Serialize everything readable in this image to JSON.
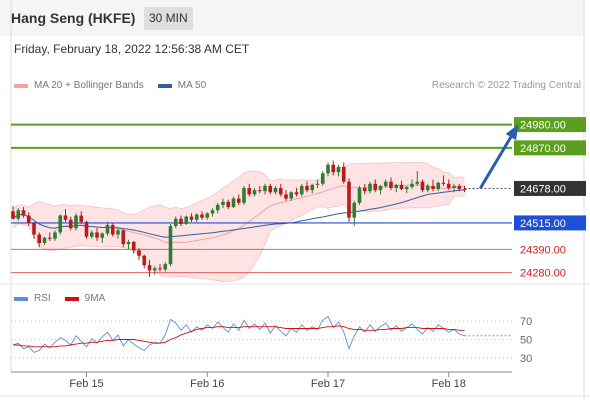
{
  "header": {
    "title": "Hang Seng (HKFE)",
    "timeframe": "30 MIN"
  },
  "datetime": "Friday, February 18, 2022 12:56:38 AM CET",
  "legend": {
    "ma20_label": "MA 20 + Bollinger Bands",
    "ma50_label": "MA 50",
    "copyright": "Research © 2022 Trading Central"
  },
  "rsi_legend": {
    "rsi_label": "RSI",
    "ma_label": "9MA"
  },
  "colors": {
    "up": "#2e7d32",
    "down": "#b71c1c",
    "green_level": "#5aa01e",
    "blue_level": "#1f4fd6",
    "red_level": "#e06060",
    "current": "#333333",
    "bb_fill": "#fde0e0",
    "ma20": "#f4a3a3",
    "ma50": "#3a5d9e",
    "arrow": "#2a5db0",
    "rsi": "#5b8fd8",
    "rsi_ma": "#d01010"
  },
  "chart_data": [
    {
      "type": "candlestick",
      "title": "",
      "xlabel": "",
      "ylabel": "",
      "ylim": [
        24245,
        25120
      ],
      "x_ticks": [
        "Feb 15",
        "Feb 16",
        "Feb 17",
        "Feb 18"
      ],
      "x_tick_index": [
        14,
        37,
        60,
        83
      ],
      "levels": [
        {
          "value": 24980.0,
          "label": "24980.00",
          "kind": "resistance"
        },
        {
          "value": 24870.0,
          "label": "24870.00",
          "kind": "resistance"
        },
        {
          "value": 24678.0,
          "label": "24678.00",
          "kind": "current"
        },
        {
          "value": 24515.0,
          "label": "24515.00",
          "kind": "pivot"
        },
        {
          "value": 24390.0,
          "label": "24390.00",
          "kind": "support"
        },
        {
          "value": 24280.0,
          "label": "24280.00",
          "kind": "support"
        }
      ],
      "target_arrow": {
        "from_index": 89,
        "from_value": 24678,
        "to_index": 96,
        "to_value": 24970
      },
      "candles": [
        [
          24570,
          24595,
          24530,
          24535
        ],
        [
          24535,
          24585,
          24525,
          24575
        ],
        [
          24575,
          24590,
          24540,
          24550
        ],
        [
          24550,
          24565,
          24500,
          24515
        ],
        [
          24515,
          24520,
          24440,
          24460
        ],
        [
          24460,
          24470,
          24400,
          24420
        ],
        [
          24420,
          24450,
          24410,
          24445
        ],
        [
          24445,
          24470,
          24430,
          24440
        ],
        [
          24440,
          24480,
          24430,
          24470
        ],
        [
          24470,
          24555,
          24460,
          24550
        ],
        [
          24550,
          24580,
          24520,
          24530
        ],
        [
          24530,
          24545,
          24480,
          24490
        ],
        [
          24490,
          24560,
          24480,
          24550
        ],
        [
          24550,
          24570,
          24510,
          24520
        ],
        [
          24520,
          24525,
          24440,
          24450
        ],
        [
          24450,
          24480,
          24440,
          24470
        ],
        [
          24470,
          24490,
          24430,
          24445
        ],
        [
          24445,
          24470,
          24420,
          24465
        ],
        [
          24465,
          24520,
          24455,
          24505
        ],
        [
          24505,
          24515,
          24450,
          24460
        ],
        [
          24460,
          24490,
          24440,
          24480
        ],
        [
          24480,
          24485,
          24400,
          24415
        ],
        [
          24415,
          24435,
          24390,
          24425
        ],
        [
          24425,
          24430,
          24370,
          24385
        ],
        [
          24385,
          24395,
          24340,
          24360
        ],
        [
          24360,
          24365,
          24300,
          24315
        ],
        [
          24315,
          24340,
          24260,
          24290
        ],
        [
          24290,
          24310,
          24270,
          24300
        ],
        [
          24300,
          24320,
          24285,
          24295
        ],
        [
          24295,
          24330,
          24285,
          24320
        ],
        [
          24320,
          24510,
          24310,
          24500
        ],
        [
          24500,
          24545,
          24490,
          24535
        ],
        [
          24535,
          24550,
          24500,
          24510
        ],
        [
          24510,
          24550,
          24505,
          24545
        ],
        [
          24545,
          24560,
          24520,
          24530
        ],
        [
          24530,
          24560,
          24520,
          24555
        ],
        [
          24555,
          24570,
          24530,
          24540
        ],
        [
          24540,
          24565,
          24530,
          24560
        ],
        [
          24560,
          24585,
          24545,
          24575
        ],
        [
          24575,
          24610,
          24560,
          24600
        ],
        [
          24600,
          24630,
          24585,
          24615
        ],
        [
          24615,
          24625,
          24580,
          24590
        ],
        [
          24590,
          24640,
          24585,
          24630
        ],
        [
          24630,
          24650,
          24600,
          24610
        ],
        [
          24610,
          24690,
          24600,
          24680
        ],
        [
          24680,
          24700,
          24640,
          24650
        ],
        [
          24650,
          24680,
          24640,
          24670
        ],
        [
          24670,
          24690,
          24655,
          24665
        ],
        [
          24665,
          24700,
          24650,
          24690
        ],
        [
          24690,
          24700,
          24650,
          24660
        ],
        [
          24660,
          24690,
          24650,
          24680
        ],
        [
          24680,
          24700,
          24640,
          24650
        ],
        [
          24650,
          24670,
          24620,
          24630
        ],
        [
          24630,
          24665,
          24620,
          24660
        ],
        [
          24660,
          24680,
          24640,
          24650
        ],
        [
          24650,
          24700,
          24640,
          24690
        ],
        [
          24690,
          24710,
          24660,
          24670
        ],
        [
          24670,
          24700,
          24655,
          24695
        ],
        [
          24695,
          24720,
          24680,
          24700
        ],
        [
          24700,
          24760,
          24690,
          24750
        ],
        [
          24750,
          24800,
          24735,
          24790
        ],
        [
          24790,
          24810,
          24740,
          24755
        ],
        [
          24755,
          24790,
          24735,
          24780
        ],
        [
          24780,
          24800,
          24700,
          24710
        ],
        [
          24710,
          24725,
          24520,
          24540
        ],
        [
          24540,
          24620,
          24500,
          24610
        ],
        [
          24610,
          24690,
          24600,
          24680
        ],
        [
          24680,
          24700,
          24650,
          24665
        ],
        [
          24665,
          24710,
          24655,
          24700
        ],
        [
          24700,
          24720,
          24660,
          24670
        ],
        [
          24670,
          24695,
          24650,
          24690
        ],
        [
          24690,
          24720,
          24680,
          24710
        ],
        [
          24710,
          24730,
          24670,
          24680
        ],
        [
          24680,
          24700,
          24660,
          24695
        ],
        [
          24695,
          24715,
          24670,
          24675
        ],
        [
          24675,
          24690,
          24655,
          24685
        ],
        [
          24685,
          24720,
          24675,
          24700
        ],
        [
          24700,
          24760,
          24690,
          24710
        ],
        [
          24710,
          24720,
          24660,
          24670
        ],
        [
          24670,
          24700,
          24660,
          24690
        ],
        [
          24690,
          24720,
          24665,
          24675
        ],
        [
          24675,
          24710,
          24665,
          24705
        ],
        [
          24705,
          24740,
          24690,
          24700
        ],
        [
          24700,
          24720,
          24670,
          24680
        ],
        [
          24680,
          24700,
          24660,
          24690
        ],
        [
          24690,
          24700,
          24665,
          24675
        ],
        [
          24675,
          24690,
          24660,
          24670
        ]
      ]
    },
    {
      "type": "line",
      "title": "",
      "ylim": [
        20,
        80
      ],
      "y_ticks": [
        70,
        50,
        30
      ],
      "series": [
        {
          "name": "RSI",
          "values": [
            44,
            46,
            40,
            42,
            36,
            38,
            45,
            41,
            47,
            52,
            49,
            44,
            54,
            48,
            42,
            51,
            46,
            53,
            58,
            49,
            55,
            43,
            50,
            45,
            41,
            38,
            44,
            47,
            46,
            55,
            72,
            68,
            60,
            66,
            58,
            64,
            60,
            66,
            62,
            69,
            63,
            58,
            67,
            60,
            71,
            62,
            67,
            61,
            68,
            57,
            65,
            59,
            54,
            62,
            58,
            66,
            60,
            64,
            61,
            71,
            75,
            63,
            69,
            58,
            40,
            54,
            64,
            58,
            66,
            59,
            64,
            68,
            60,
            65,
            59,
            63,
            67,
            61,
            56,
            63,
            59,
            66,
            62,
            58,
            61,
            56,
            54
          ]
        },
        {
          "name": "9MA",
          "values": [
            44,
            44,
            43,
            43,
            42,
            42,
            42,
            42,
            42,
            43,
            43,
            44,
            45,
            46,
            46,
            47,
            47,
            48,
            49,
            49,
            50,
            50,
            50,
            50,
            49,
            48,
            47,
            46,
            46,
            47,
            50,
            52,
            55,
            57,
            59,
            61,
            62,
            63,
            63,
            64,
            64,
            63,
            63,
            63,
            64,
            64,
            64,
            64,
            64,
            64,
            64,
            63,
            62,
            62,
            62,
            62,
            62,
            62,
            62,
            63,
            64,
            64,
            65,
            64,
            62,
            61,
            61,
            60,
            60,
            60,
            61,
            61,
            62,
            62,
            62,
            63,
            63,
            63,
            62,
            62,
            62,
            62,
            62,
            61,
            61,
            60,
            60
          ]
        }
      ]
    }
  ]
}
